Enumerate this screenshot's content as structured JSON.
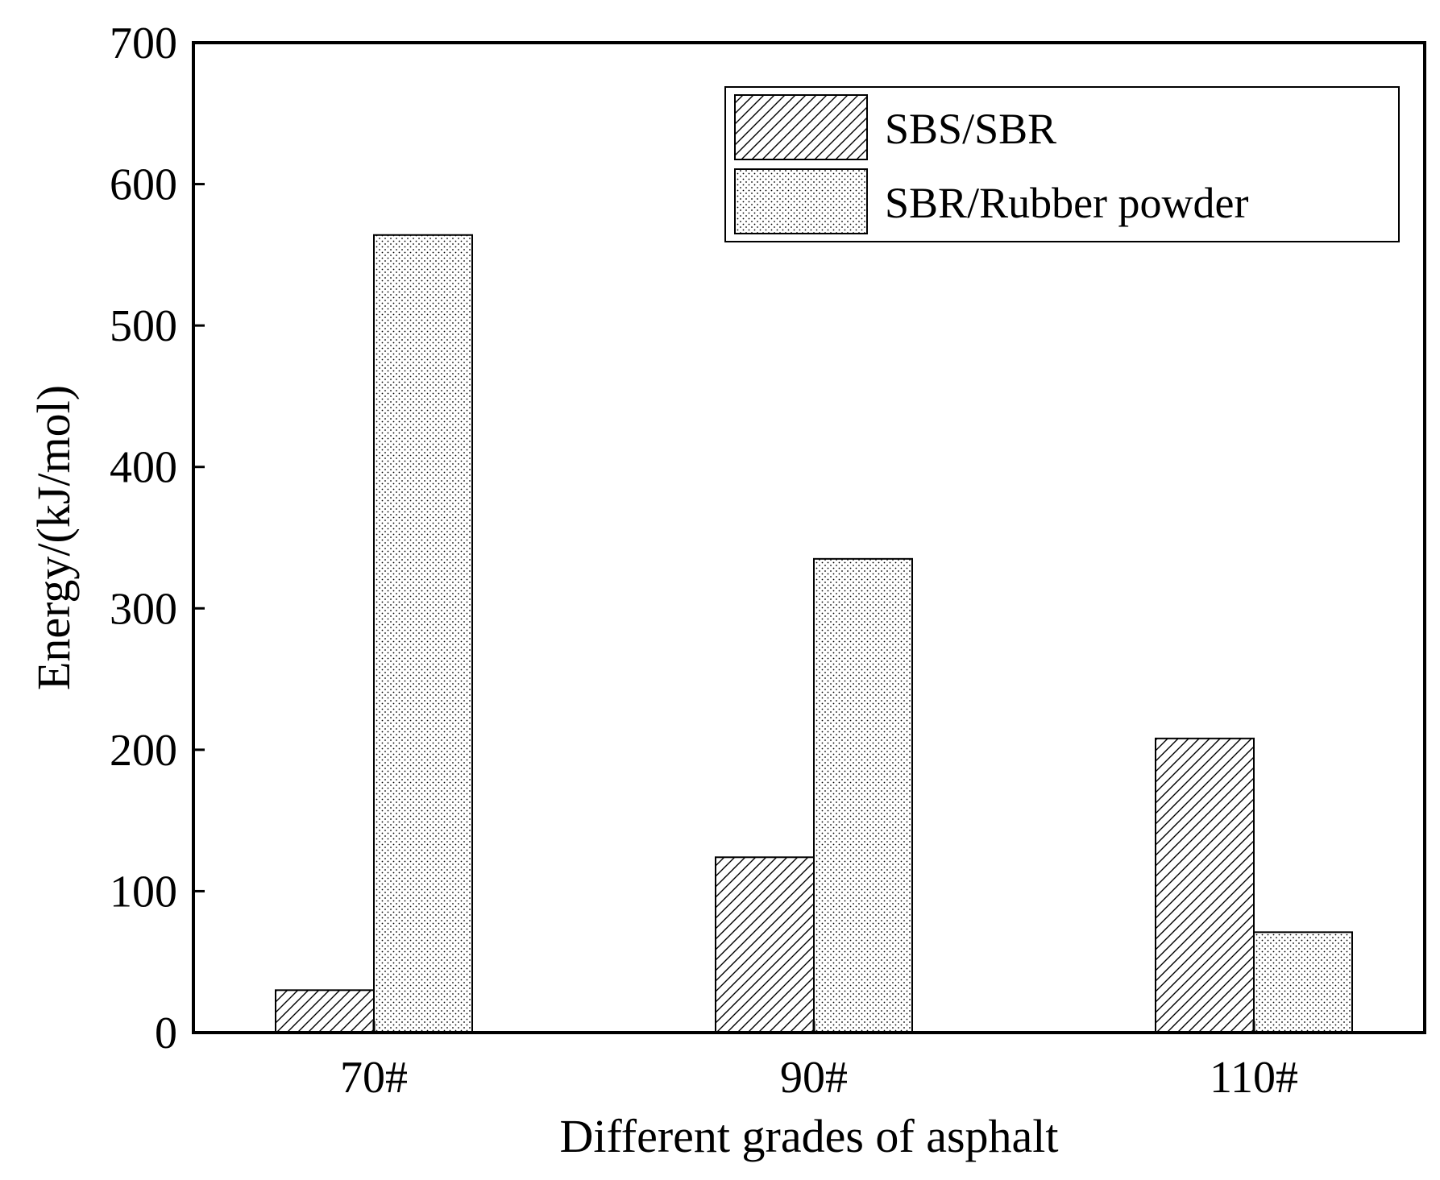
{
  "chart_data": {
    "type": "bar",
    "title": "",
    "xlabel": "Different grades of asphalt",
    "ylabel": "Energy/(kJ/mol)",
    "categories": [
      "70#",
      "90#",
      "110#"
    ],
    "ylim": [
      0,
      700
    ],
    "yticks": [
      "0",
      "100",
      "200",
      "300",
      "400",
      "500",
      "600",
      "700"
    ],
    "series": [
      {
        "name": "SBS/SBR",
        "values": [
          30,
          124,
          208
        ],
        "pattern": "diagonal-hatch"
      },
      {
        "name": "SBR/Rubber powder",
        "values": [
          564,
          335,
          71
        ],
        "pattern": "dots"
      }
    ],
    "legend_position": "top-right",
    "grid": false,
    "colors": {
      "axis": "#000000",
      "bar_fill": "#ffffff",
      "pattern": "#000000"
    }
  }
}
